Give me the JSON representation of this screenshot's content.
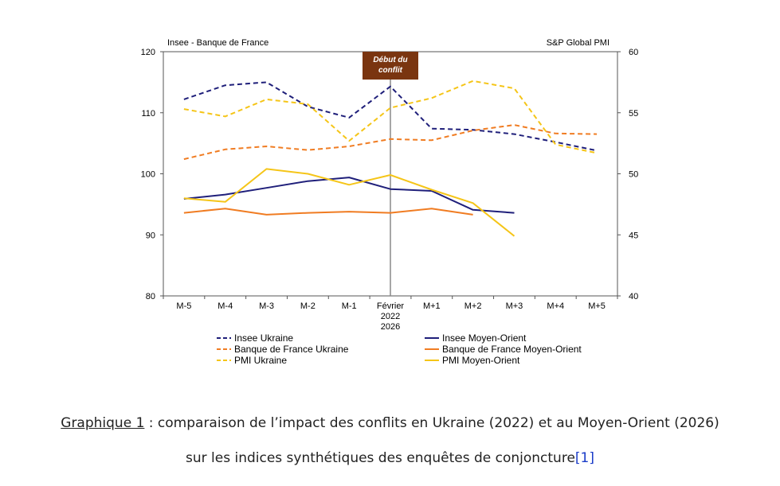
{
  "chart_data": {
    "type": "line",
    "categories": [
      "M-5",
      "M-4",
      "M-3",
      "M-2",
      "M-1",
      "Février 2022 2026",
      "M+1",
      "M+2",
      "M+3",
      "M+4",
      "M+5"
    ],
    "category_lines": [
      [
        "M-5"
      ],
      [
        "M-4"
      ],
      [
        "M-3"
      ],
      [
        "M-2"
      ],
      [
        "M-1"
      ],
      [
        "Février",
        "2022",
        "2026"
      ],
      [
        "M+1"
      ],
      [
        "M+2"
      ],
      [
        "M+3"
      ],
      [
        "M+4"
      ],
      [
        "M+5"
      ]
    ],
    "left_axis_label": "Insee - Banque de France",
    "right_axis_label": "S&P Global PMI",
    "ylim_left": [
      80,
      120
    ],
    "yticks_left": [
      80,
      90,
      100,
      110,
      120
    ],
    "ylim_right": [
      40,
      60
    ],
    "yticks_right": [
      40,
      45,
      50,
      55,
      60
    ],
    "annotation": {
      "lines": [
        "Début du",
        "conflit"
      ],
      "category_index": 5,
      "color": "#7a3510"
    },
    "grid": false,
    "legend_position": "bottom",
    "series": [
      {
        "name": "Insee Ukraine",
        "axis": "left",
        "style": "dashed",
        "color": "#1f1f7a",
        "values": [
          112.2,
          114.5,
          115.0,
          111.0,
          109.2,
          114.3,
          107.4,
          107.2,
          106.5,
          105.2,
          103.8
        ]
      },
      {
        "name": "Insee Moyen-Orient",
        "axis": "left",
        "style": "solid",
        "color": "#1f1f7a",
        "values": [
          95.9,
          96.6,
          97.7,
          98.8,
          99.4,
          97.5,
          97.2,
          94.1,
          93.6,
          null,
          null
        ]
      },
      {
        "name": "Banque de France Ukraine",
        "axis": "left",
        "style": "dashed",
        "color": "#f07c22",
        "values": [
          102.4,
          104.0,
          104.5,
          103.9,
          104.5,
          105.7,
          105.5,
          107.1,
          108.0,
          106.6,
          106.5
        ]
      },
      {
        "name": "Banque de France Moyen-Orient",
        "axis": "left",
        "style": "solid",
        "color": "#f07c22",
        "values": [
          93.6,
          94.3,
          93.3,
          93.6,
          93.8,
          93.6,
          94.3,
          93.3,
          null,
          null,
          null
        ]
      },
      {
        "name": "PMI Ukraine",
        "axis": "right",
        "style": "dashed",
        "color": "#f5c518",
        "values": [
          55.3,
          54.7,
          56.1,
          55.7,
          52.7,
          55.4,
          56.2,
          57.6,
          57.0,
          52.4,
          51.7
        ]
      },
      {
        "name": "PMI Moyen-Orient",
        "axis": "right",
        "style": "solid",
        "color": "#f5c518",
        "values": [
          48.0,
          47.7,
          50.4,
          50.0,
          49.1,
          49.9,
          48.7,
          47.6,
          44.9,
          null,
          null
        ]
      }
    ]
  },
  "caption": {
    "line1_link": "Graphique 1",
    "line1_rest": " : comparaison de l’impact des conflits en Ukraine (2022) et au Moyen-Orient (2026)",
    "line2_text": "sur les indices synthétiques des enquêtes de conjoncture",
    "line2_ref": "[1]"
  }
}
